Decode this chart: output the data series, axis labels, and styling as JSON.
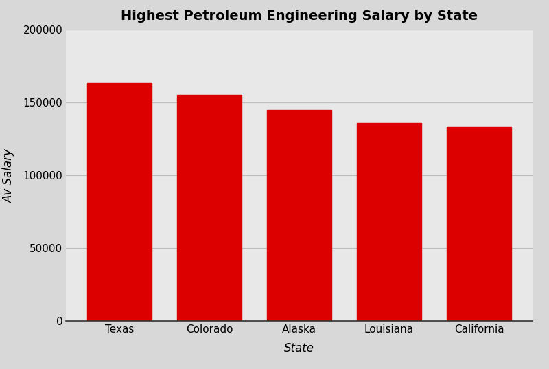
{
  "categories": [
    "Texas",
    "Colorado",
    "Alaska",
    "Louisiana",
    "California"
  ],
  "values": [
    163000,
    155000,
    145000,
    136000,
    133000
  ],
  "bar_color": "#dd0000",
  "title": "Highest Petroleum Engineering Salary by State",
  "xlabel": "State",
  "ylabel": "Av Salary",
  "ylim": [
    0,
    200000
  ],
  "yticks": [
    0,
    50000,
    100000,
    150000,
    200000
  ],
  "background_color": "#d8d8d8",
  "plot_bg_color": "#e8e8e8",
  "title_fontsize": 14,
  "axis_label_fontsize": 12,
  "tick_fontsize": 11,
  "bar_width": 0.72
}
